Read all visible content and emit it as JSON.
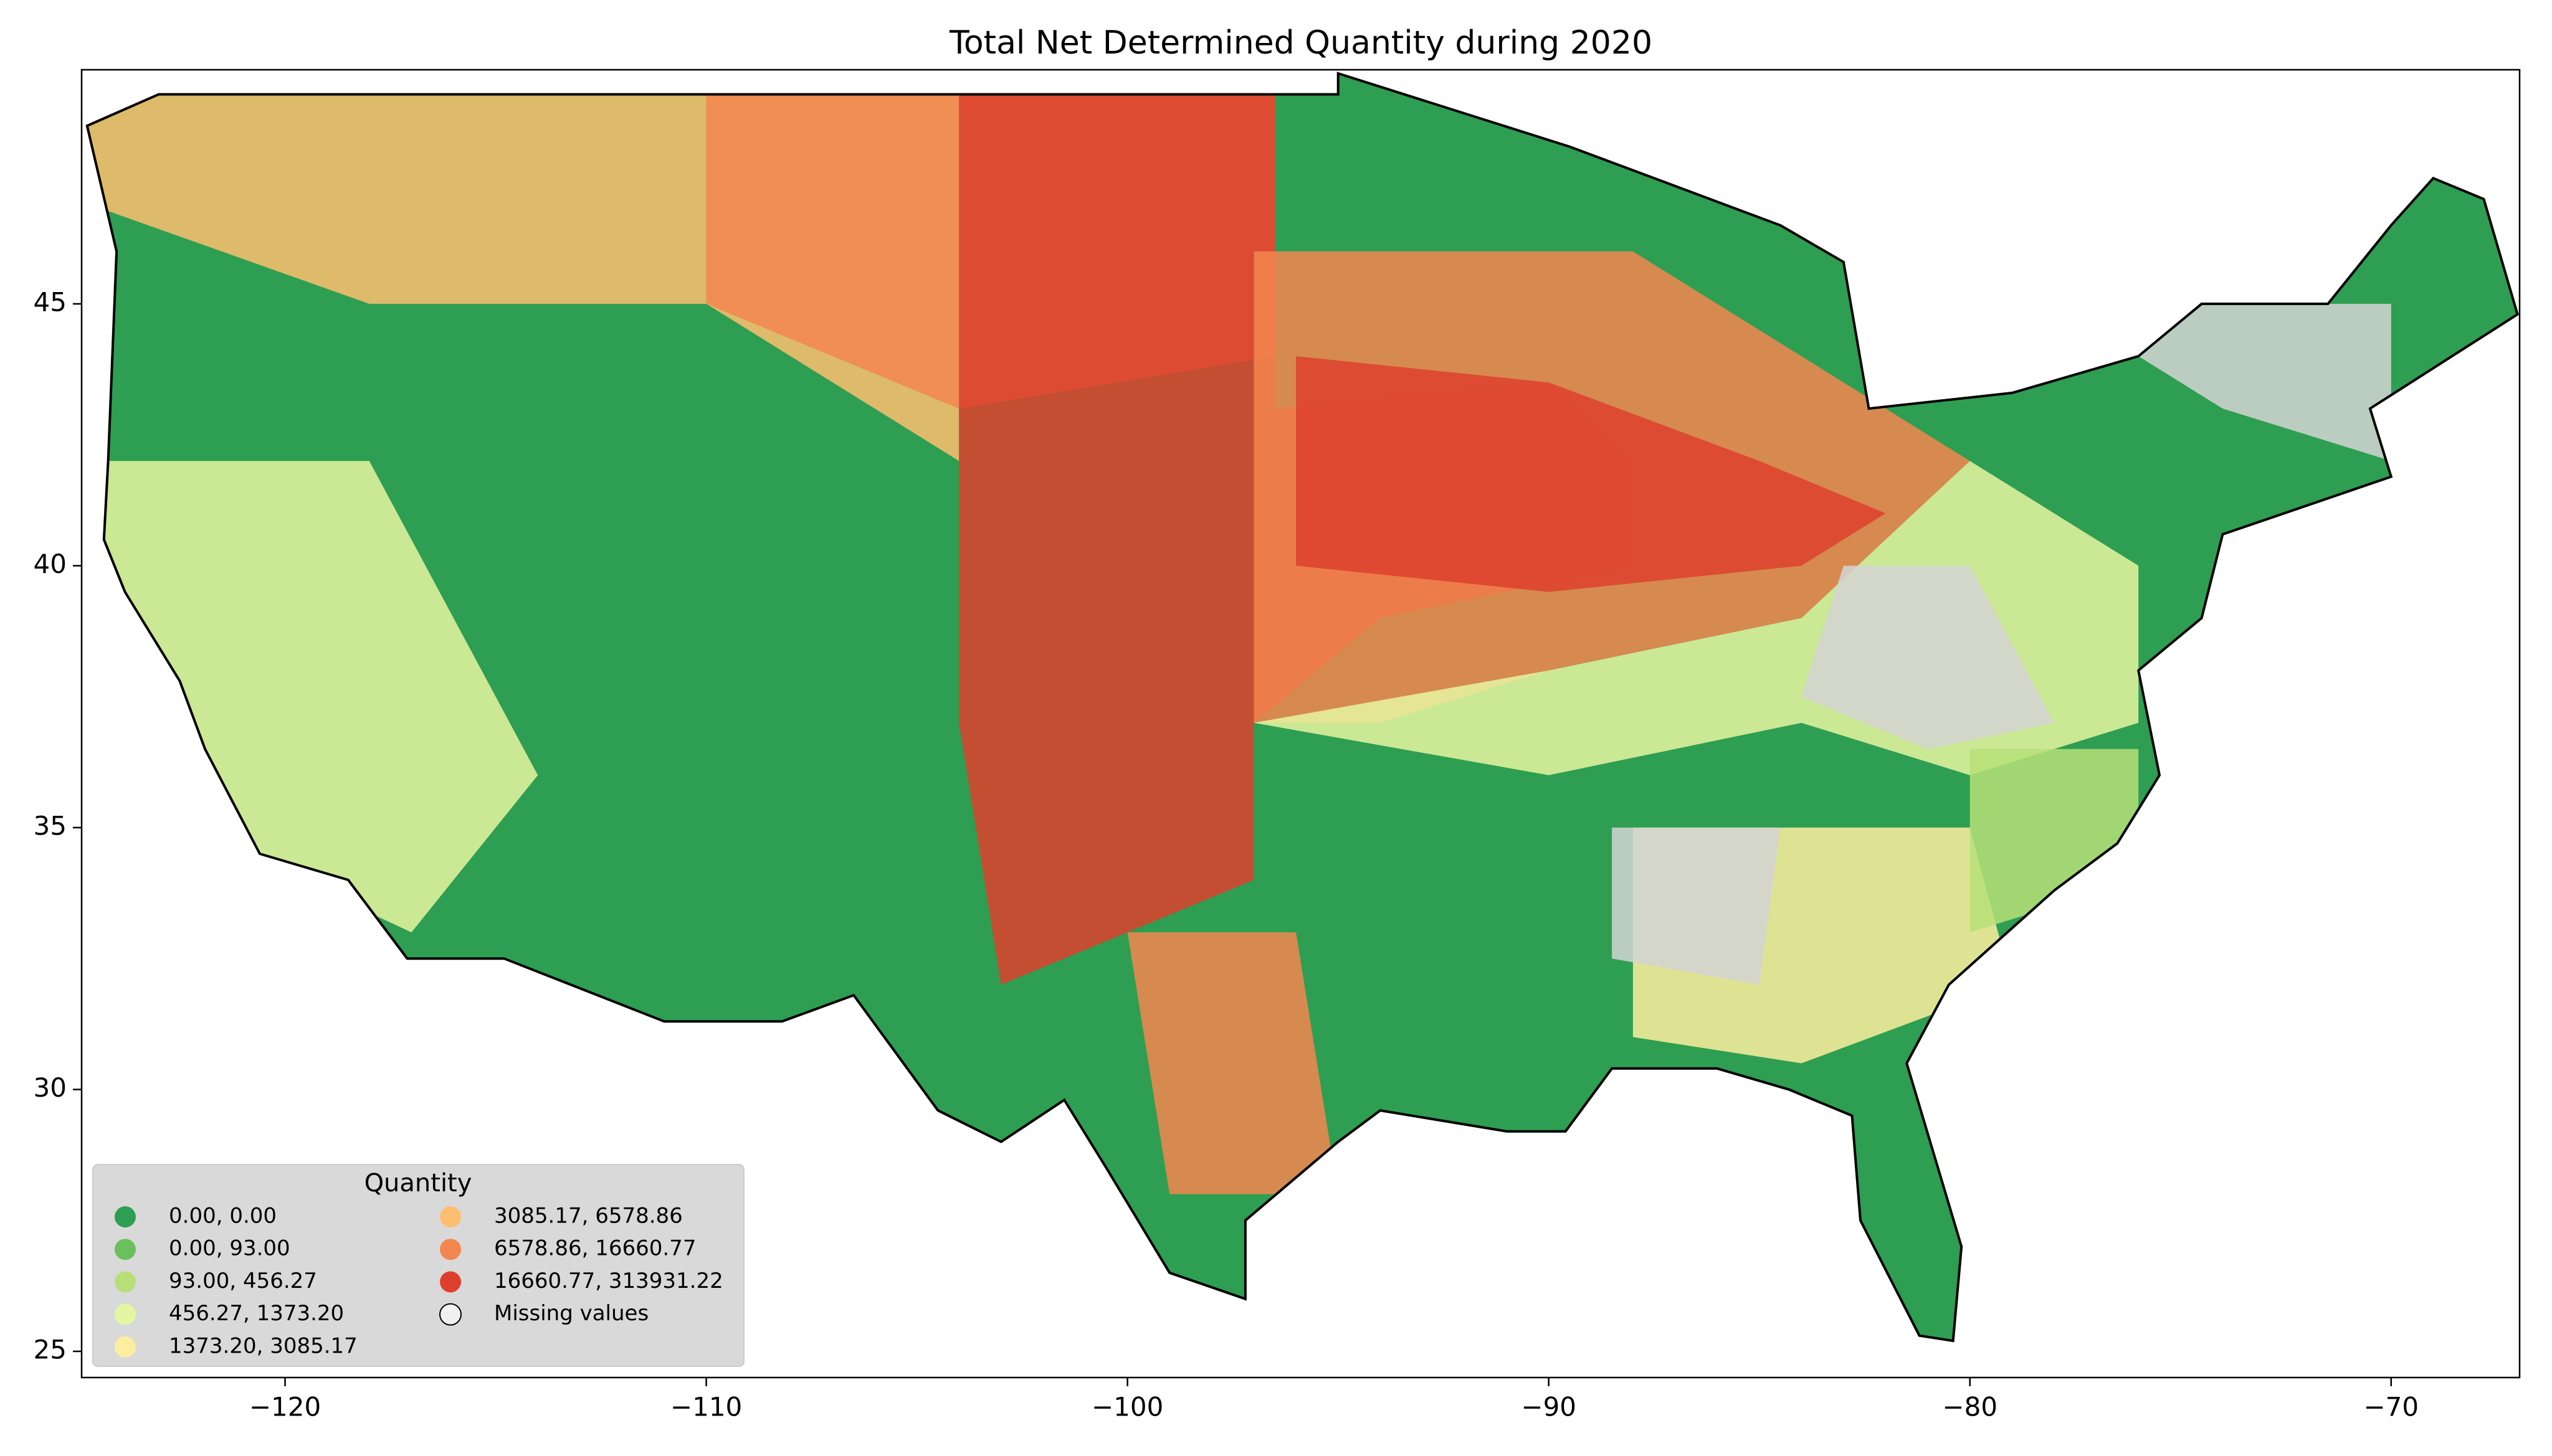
{
  "chart_data": {
    "type": "choropleth",
    "title": "Total Net Determined Quantity during 2020",
    "xlim": [
      -124.83,
      -66.95
    ],
    "ylim": [
      24.5,
      49.47
    ],
    "xticks": [
      {
        "value": -120,
        "label": "−120"
      },
      {
        "value": -110,
        "label": "−110"
      },
      {
        "value": -100,
        "label": "−100"
      },
      {
        "value": -90,
        "label": "−90"
      },
      {
        "value": -80,
        "label": "−80"
      },
      {
        "value": -70,
        "label": "−70"
      }
    ],
    "yticks": [
      25,
      30,
      35,
      40,
      45
    ],
    "legend": {
      "title": "Quantity",
      "corner": "lower left",
      "entries": [
        {
          "label": "0.00, 0.00",
          "color": "#2e9e52"
        },
        {
          "label": "0.00, 93.00",
          "color": "#6cbf5e"
        },
        {
          "label": "93.00, 456.27",
          "color": "#b6df78"
        },
        {
          "label": "456.27, 1373.20",
          "color": "#e6f5a1"
        },
        {
          "label": "1373.20, 3085.17",
          "color": "#fdee9f"
        },
        {
          "label": "3085.17, 6578.86",
          "color": "#fdbe70"
        },
        {
          "label": "6578.86, 16660.77",
          "color": "#f3864f"
        },
        {
          "label": "16660.77, 313931.22",
          "color": "#de3f2d"
        },
        {
          "label": "Missing values",
          "color": "#d3d3d3"
        }
      ]
    }
  }
}
